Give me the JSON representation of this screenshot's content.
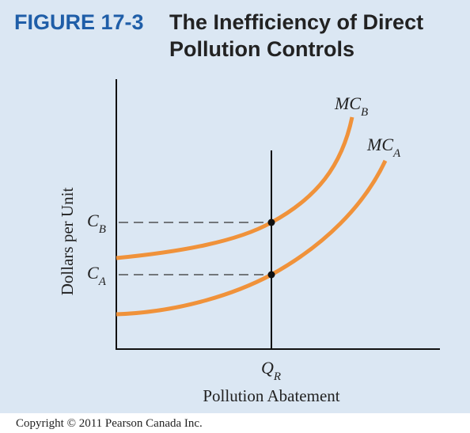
{
  "figure": {
    "label": "FIGURE 17-3",
    "title_lines": [
      "The Inefficiency of Direct",
      "Pollution Controls"
    ]
  },
  "axes": {
    "x_label": "Pollution Abatement",
    "y_label": "Dollars per Unit"
  },
  "curves": [
    {
      "name": "MC",
      "subscript": "B"
    },
    {
      "name": "MC",
      "subscript": "A"
    }
  ],
  "price_levels": [
    {
      "name": "C",
      "subscript": "B"
    },
    {
      "name": "C",
      "subscript": "A"
    }
  ],
  "quantity": {
    "name": "Q",
    "subscript": "R"
  },
  "copyright": "Copyright © 2011 Pearson Canada Inc."
}
